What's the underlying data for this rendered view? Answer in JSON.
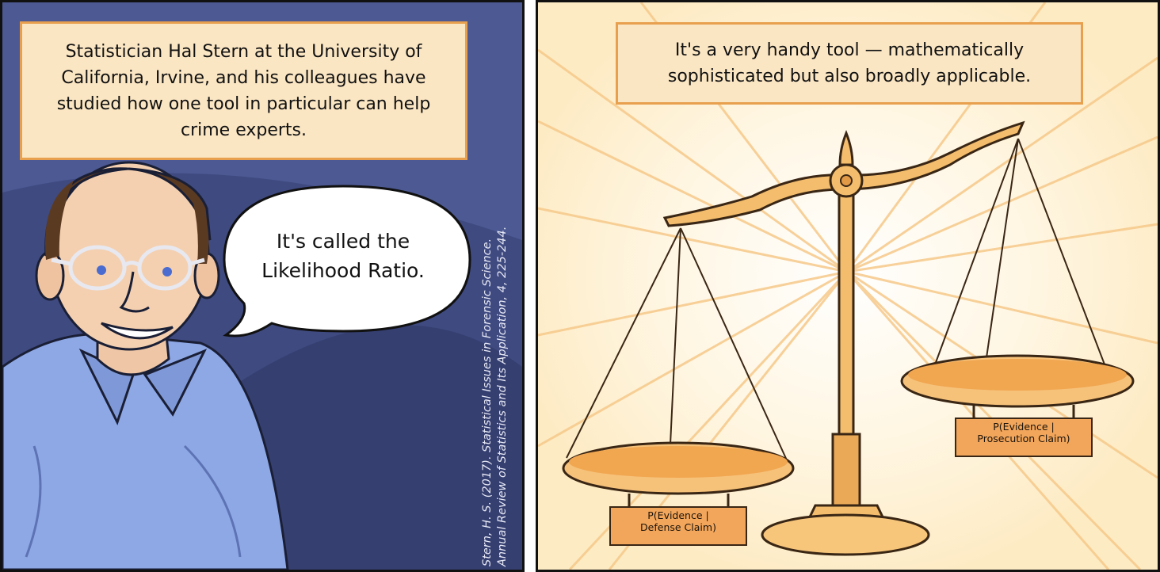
{
  "panel_left": {
    "caption": "Statistician Hal Stern at the University of California, Irvine, and his colleagues have studied how one tool in particular can help crime experts.",
    "speech_bubble": "It's called the Likelihood Ratio.",
    "citation_line1": "Stern, H. S. (2017). Statistical Issues in Forensic Science.",
    "citation_line2": "Annual Review of Statistics and Its Application, 4, 225-244."
  },
  "panel_right": {
    "caption": "It's a very handy tool — mathematically sophisticated but also broadly applicable.",
    "label_left_pan_line1": "P(Evidence |",
    "label_left_pan_line2": "Defense Claim)",
    "label_right_pan_line1": "P(Evidence |",
    "label_right_pan_line2": "Prosecution Claim)"
  },
  "colors": {
    "left_background": "#4c5993",
    "right_background": "#fdf0cf",
    "caption_fill": "#fbe6c3",
    "caption_border": "#e8a04e",
    "shirt": "#8ea8e6",
    "scale_gold": "#f3bd6d",
    "label_fill": "#f2a65b"
  }
}
